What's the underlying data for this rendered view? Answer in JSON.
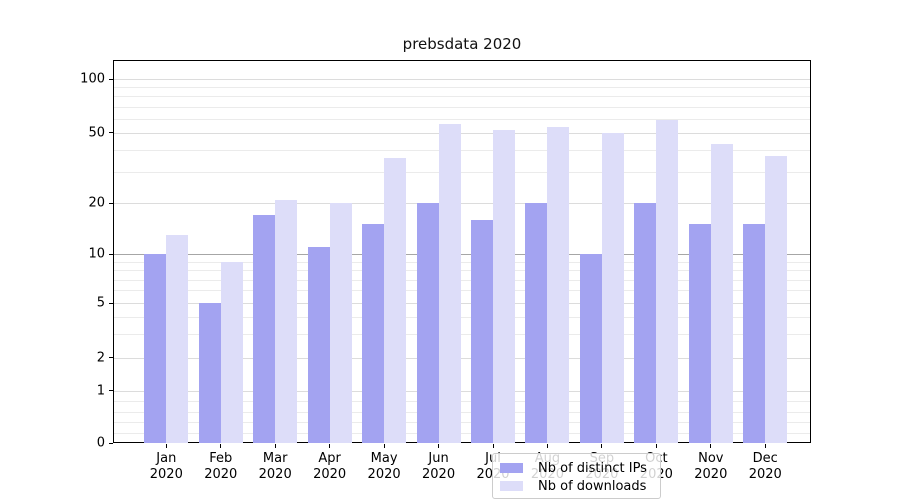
{
  "title": "prebsdata 2020",
  "legend": {
    "items": [
      {
        "label": "Nb of distinct IPs",
        "color": "#a3a3f1"
      },
      {
        "label": "Nb of downloads",
        "color": "#ddddf9"
      }
    ]
  },
  "chart_data": {
    "type": "bar",
    "title": "prebsdata 2020",
    "categories": [
      "Jan 2020",
      "Feb 2020",
      "Mar 2020",
      "Apr 2020",
      "May 2020",
      "Jun 2020",
      "Jul 2020",
      "Aug 2020",
      "Sep 2020",
      "Oct 2020",
      "Nov 2020",
      "Dec 2020"
    ],
    "x_labels": [
      [
        "Jan",
        "2020"
      ],
      [
        "Feb",
        "2020"
      ],
      [
        "Mar",
        "2020"
      ],
      [
        "Apr",
        "2020"
      ],
      [
        "May",
        "2020"
      ],
      [
        "Jun",
        "2020"
      ],
      [
        "Jul",
        "2020"
      ],
      [
        "Aug",
        "2020"
      ],
      [
        "Sep",
        "2020"
      ],
      [
        "Oct",
        "2020"
      ],
      [
        "Nov",
        "2020"
      ],
      [
        "Dec",
        "2020"
      ]
    ],
    "series": [
      {
        "name": "Nb of distinct IPs",
        "color": "#a3a3f1",
        "values": [
          10,
          5,
          17,
          11,
          15,
          20,
          16,
          20,
          10,
          20,
          15,
          15
        ]
      },
      {
        "name": "Nb of downloads",
        "color": "#ddddf9",
        "values": [
          13,
          9,
          21,
          20,
          36,
          56,
          52,
          54,
          50,
          59,
          43,
          37
        ]
      }
    ],
    "xlabel": "",
    "ylabel": "",
    "yscale": "symlog",
    "ylim": [
      0,
      140
    ],
    "y_ticks": [
      0,
      1,
      2,
      5,
      10,
      20,
      50,
      100
    ],
    "y_minor_ticks": [
      0.2,
      0.4,
      0.6,
      0.8,
      3,
      4,
      6,
      7,
      8,
      9,
      30,
      40,
      60,
      70,
      80,
      90
    ],
    "reference_line_y": 10,
    "grid": true,
    "legend_position": "lower center inside",
    "colors": {
      "series_dark": "#a3a3f1",
      "series_light": "#ddddf9",
      "grid_major": "#dcdcdc",
      "grid_minor": "#ebebeb",
      "grid_reference": "#a6a6a6",
      "axis": "#000000"
    }
  }
}
